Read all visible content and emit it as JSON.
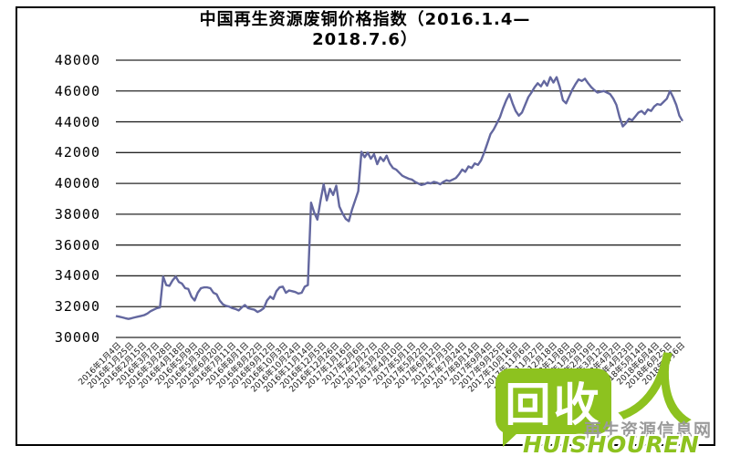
{
  "chart": {
    "title_line1": "中国再生资源废铜价格指数（2016.1.4—",
    "title_line2": "2018.7.6）"
  },
  "chart_data": {
    "type": "line",
    "title": "中国再生资源废铜价格指数（2016.1.4—2018.7.6）",
    "ylabel": "",
    "xlabel": "",
    "ylim": [
      30000,
      48000
    ],
    "grid": true,
    "legend": "none",
    "line_color": "#63679f",
    "grid_color": "#262626",
    "x_start": "2016年1月4日",
    "x_end": "2018年7月6日",
    "y_ticks": [
      48000,
      46000,
      44000,
      42000,
      40000,
      38000,
      36000,
      34000,
      32000,
      30000
    ],
    "x_labels": [
      "2016年1月4日",
      "2016年1月25日",
      "2016年2月15日",
      "2016年3月7日",
      "2016年3月28日",
      "2016年4月18日",
      "2016年5月9日",
      "2016年5月30日",
      "2016年6月20日",
      "2016年7月11日",
      "2016年8月1日",
      "2016年8月22日",
      "2016年9月12日",
      "2016年10月3日",
      "2016年10月24日",
      "2016年11月14日",
      "2016年12月5日",
      "2016年12月26日",
      "2017年1月16日",
      "2017年2月6日",
      "2017年2月27日",
      "2017年3月20日",
      "2017年4月10日",
      "2017年5月1日",
      "2017年5月22日",
      "2017年6月12日",
      "2017年7月3日",
      "2017年7月24日",
      "2017年8月14日",
      "2017年9月4日",
      "2017年9月25日",
      "2017年10月16日",
      "2017年11月6日",
      "2017年11月27日",
      "2017年12月18日",
      "2018年1月8日",
      "2018年1月29日",
      "2018年2月19日",
      "2018年3月12日",
      "2018年4月2日",
      "2018年4月23日",
      "2018年5月14日",
      "2018年6月4日",
      "2018年6月25日",
      "2018年7月6日"
    ],
    "values": [
      31400,
      31350,
      31300,
      31250,
      31200,
      31250,
      31300,
      31350,
      31400,
      31450,
      31550,
      31700,
      31800,
      31900,
      31950,
      33950,
      33400,
      33350,
      33700,
      33950,
      33600,
      33500,
      33200,
      33150,
      32650,
      32400,
      32900,
      33200,
      33250,
      33250,
      33200,
      32900,
      32800,
      32400,
      32150,
      32050,
      32000,
      31900,
      31850,
      31750,
      31950,
      32100,
      31900,
      31850,
      31800,
      31650,
      31750,
      31900,
      32400,
      32650,
      32500,
      33000,
      33250,
      33300,
      32900,
      33050,
      33000,
      32950,
      32850,
      32900,
      33300,
      33400,
      38750,
      38100,
      37650,
      38900,
      39950,
      38900,
      39650,
      39250,
      39850,
      38500,
      38050,
      37700,
      37550,
      38300,
      38900,
      39500,
      42050,
      41700,
      42000,
      41600,
      41900,
      41250,
      41700,
      41450,
      41800,
      41300,
      41000,
      40900,
      40700,
      40500,
      40400,
      40300,
      40250,
      40100,
      40000,
      39900,
      39950,
      40050,
      40000,
      40100,
      40050,
      39950,
      40100,
      40200,
      40150,
      40250,
      40350,
      40600,
      40900,
      40750,
      41100,
      41000,
      41300,
      41200,
      41500,
      42000,
      42600,
      43200,
      43500,
      43900,
      44300,
      44900,
      45400,
      45800,
      45200,
      44700,
      44400,
      44600,
      45100,
      45600,
      45900,
      46250,
      46500,
      46300,
      46650,
      46350,
      46900,
      46550,
      46900,
      46250,
      45400,
      45200,
      45650,
      46100,
      46450,
      46750,
      46650,
      46800,
      46500,
      46250,
      46050,
      45900,
      45950,
      46000,
      45900,
      45800,
      45500,
      45100,
      44300,
      43700,
      43900,
      44200,
      44100,
      44350,
      44600,
      44700,
      44500,
      44800,
      44700,
      45000,
      45150,
      45100,
      45300,
      45500,
      46000,
      45600,
      45100,
      44400,
      44050
    ]
  },
  "logo": {
    "bubble_text": "回收",
    "person_glyph": "人",
    "latin": "HUISHOUREN",
    "watermark": "再生资源信息网",
    "green": "#8dc21f"
  }
}
